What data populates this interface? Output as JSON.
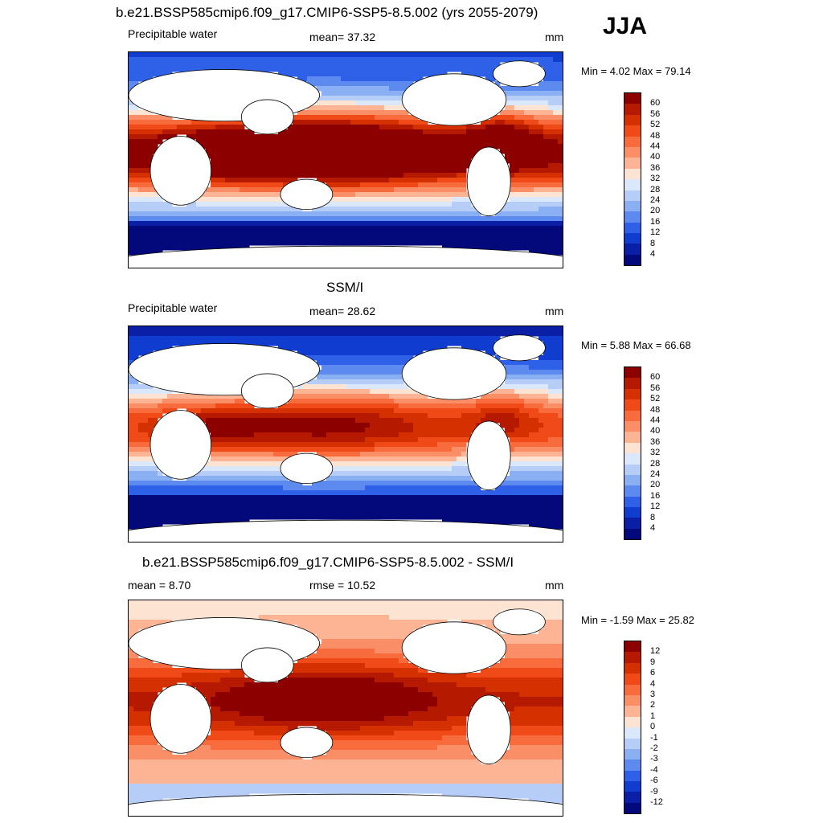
{
  "season": "JJA",
  "panels": [
    {
      "title": "b.e21.BSSP585cmip6.f09_g17.CMIP6-SSP5-8.5.002 (yrs 2055-2079)",
      "left_label": "Precipitable water",
      "center_label": "mean=  37.32",
      "right_label": "mm",
      "minmax": "Min =   4.02 Max =  79.14",
      "colorbar_ticks": [
        "60",
        "56",
        "52",
        "48",
        "44",
        "40",
        "36",
        "32",
        "28",
        "24",
        "20",
        "16",
        "12",
        "8",
        "4"
      ],
      "field": "model"
    },
    {
      "title": "SSM/I",
      "left_label": "Precipitable water",
      "center_label": "mean=  28.62",
      "right_label": "mm",
      "minmax": "Min =   5.88 Max =  66.68",
      "colorbar_ticks": [
        "60",
        "56",
        "52",
        "48",
        "44",
        "40",
        "36",
        "32",
        "28",
        "24",
        "20",
        "16",
        "12",
        "8",
        "4"
      ],
      "field": "obs"
    },
    {
      "title": "b.e21.BSSP585cmip6.f09_g17.CMIP6-SSP5-8.5.002 - SSM/I",
      "left_label": "mean =   8.70",
      "center_label": "rmse =  10.52",
      "right_label": "mm",
      "minmax": "Min =  -1.59 Max =  25.82",
      "colorbar_ticks": [
        "12",
        "9",
        "6",
        "4",
        "3",
        "2",
        "1",
        "0",
        "-1",
        "-2",
        "-3",
        "-4",
        "-6",
        "-9",
        "-12"
      ],
      "field": "diff"
    }
  ],
  "colors": {
    "levels_warm_to_cool": [
      "#8c0000",
      "#b51a00",
      "#d53100",
      "#f04a18",
      "#f86b3d",
      "#fa8e66",
      "#fcb494",
      "#fde4d2",
      "#dbe7fa",
      "#b5cdf7",
      "#8aaff2",
      "#5c8aee",
      "#2e61e8",
      "#103ccf",
      "#0a1fa6",
      "#03087a"
    ]
  }
}
